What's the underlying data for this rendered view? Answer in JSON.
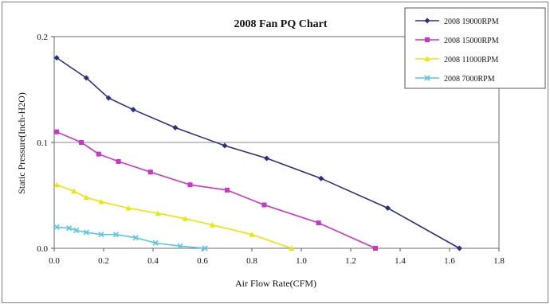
{
  "chart_data": {
    "type": "line",
    "title": "2008 Fan PQ Chart",
    "xlabel": "Air Flow Rate(CFM)",
    "ylabel": "Static Pressure(Inch-H2O)",
    "xlim": [
      0,
      1.8
    ],
    "ylim": [
      0,
      0.2
    ],
    "x_ticks": [
      "0.0",
      "0.2",
      "0.4",
      "0.6",
      "0.8",
      "1.0",
      "1.2",
      "1.4",
      "1.6",
      "1.8"
    ],
    "y_ticks": [
      "0.0",
      "0.1",
      "0.2"
    ],
    "grid": "horizontal line at 0.1",
    "legend_position": "top-right",
    "series": [
      {
        "name": "2008  19000RPM",
        "color": "#2b2f86",
        "marker": "diamond",
        "x": [
          0.01,
          0.13,
          0.22,
          0.32,
          0.49,
          0.69,
          0.86,
          1.08,
          1.35,
          1.64
        ],
        "y": [
          0.18,
          0.161,
          0.142,
          0.131,
          0.114,
          0.097,
          0.085,
          0.066,
          0.038,
          0.0
        ]
      },
      {
        "name": "2008  15000RPM",
        "color": "#cc33cc",
        "marker": "square",
        "x": [
          0.01,
          0.11,
          0.18,
          0.26,
          0.39,
          0.55,
          0.7,
          0.85,
          1.07,
          1.3
        ],
        "y": [
          0.11,
          0.1,
          0.089,
          0.082,
          0.072,
          0.06,
          0.055,
          0.041,
          0.024,
          0.0
        ]
      },
      {
        "name": "2008  11000RPM",
        "color": "#e8e800",
        "marker": "triangle",
        "x": [
          0.01,
          0.08,
          0.13,
          0.19,
          0.3,
          0.42,
          0.53,
          0.64,
          0.8,
          0.96
        ],
        "y": [
          0.06,
          0.054,
          0.048,
          0.044,
          0.038,
          0.033,
          0.028,
          0.022,
          0.013,
          0.0
        ]
      },
      {
        "name": "2008  7000RPM",
        "color": "#55c8e6",
        "marker": "x",
        "x": [
          0.01,
          0.06,
          0.09,
          0.13,
          0.19,
          0.25,
          0.33,
          0.41,
          0.51,
          0.61
        ],
        "y": [
          0.02,
          0.019,
          0.017,
          0.015,
          0.013,
          0.013,
          0.01,
          0.005,
          0.002,
          0.0
        ]
      }
    ]
  }
}
